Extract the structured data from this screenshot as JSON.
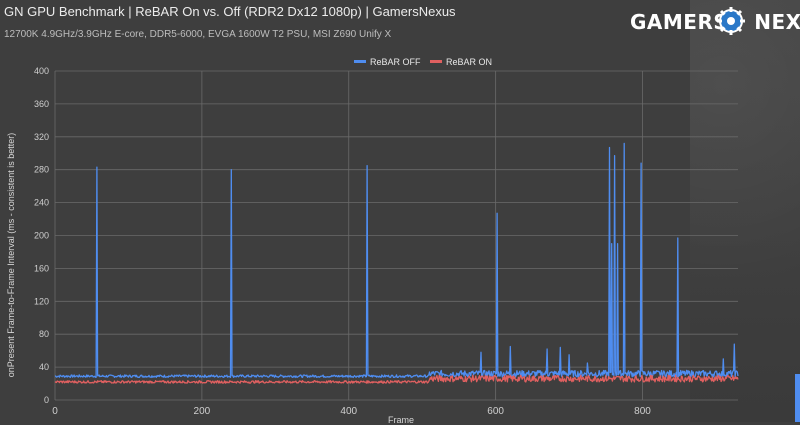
{
  "header": {
    "title": "GN GPU Benchmark | ReBAR On vs. Off (RDR2 Dx12 1080p) | GamersNexus",
    "subtitle": "12700K 4.9GHz/3.9GHz E-core, DDR5-6000, EVGA 1600W T2 PSU, MSI Z690 Unify X"
  },
  "logo": {
    "text": "GAMERS NEXUS",
    "icon": "gear-icon"
  },
  "colors": {
    "rebar_off": "#4f8df0",
    "rebar_on": "#e06060",
    "grid": "#6a6a6a",
    "axis_text": "#cfcfcf"
  },
  "chart_data": {
    "type": "line",
    "title": "GN GPU Benchmark | ReBAR On vs. Off (RDR2 Dx12 1080p) | GamersNexus",
    "xlabel": "Frame",
    "ylabel": "onPresent Frame-to-Frame Interval (ms - consistent is better)",
    "xlim": [
      0,
      930
    ],
    "ylim": [
      0,
      400
    ],
    "x_ticks": [
      0,
      200,
      400,
      600,
      800
    ],
    "y_ticks": [
      0,
      40,
      80,
      120,
      160,
      200,
      240,
      280,
      320,
      360,
      400
    ],
    "legend": {
      "position": "top",
      "entries": [
        "ReBAR OFF",
        "ReBAR ON"
      ]
    },
    "grid": true,
    "series": [
      {
        "name": "ReBAR OFF",
        "color": "#4f8df0",
        "baseline": 29,
        "baseline_late": 32,
        "spikes": [
          {
            "x": 57,
            "y": 283
          },
          {
            "x": 240,
            "y": 280
          },
          {
            "x": 425,
            "y": 285
          },
          {
            "x": 602,
            "y": 227
          },
          {
            "x": 755,
            "y": 307
          },
          {
            "x": 758,
            "y": 190
          },
          {
            "x": 762,
            "y": 297
          },
          {
            "x": 766,
            "y": 190
          },
          {
            "x": 775,
            "y": 312
          },
          {
            "x": 798,
            "y": 288
          },
          {
            "x": 848,
            "y": 197
          },
          {
            "x": 580,
            "y": 58
          },
          {
            "x": 620,
            "y": 65
          },
          {
            "x": 670,
            "y": 62
          },
          {
            "x": 688,
            "y": 64
          },
          {
            "x": 700,
            "y": 55
          },
          {
            "x": 725,
            "y": 45
          },
          {
            "x": 910,
            "y": 50
          },
          {
            "x": 925,
            "y": 68
          }
        ]
      },
      {
        "name": "ReBAR ON",
        "color": "#e06060",
        "baseline": 22,
        "baseline_late": 26
      }
    ]
  }
}
